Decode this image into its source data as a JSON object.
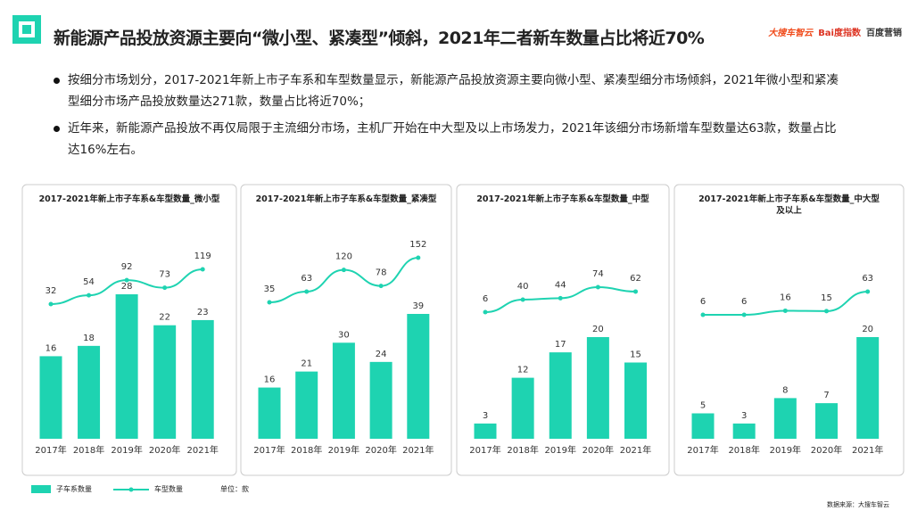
{
  "header": {
    "title": "新能源产品投放资源主要向“微小型、紧凑型”倾斜，2021年二者新车数量占比将近70%",
    "brands": [
      "大搜车智云",
      "Bai度指数",
      "百度营销"
    ]
  },
  "bullets": [
    "按细分市场划分，2017-2021年新上市子车系和车型数量显示，新能源产品投放资源主要向微小型、紧凑型细分市场倾斜，2021年微小型和紧凑型细分市场产品投放数量达271款，数量占比将近70%；",
    "近年来，新能源产品投放不再仅局限于主流细分市场，主机厂开始在中大型及以上市场发力，2021年该细分市场新增车型数量达63款，数量占比达16%左右。"
  ],
  "colors": {
    "accent": "#1ed3b1"
  },
  "chart_data": [
    {
      "type": "bar+line",
      "title": [
        "2017-2021年新上市子车系&车型数量_微小型"
      ],
      "categories": [
        "2017年",
        "2018年",
        "2019年",
        "2020年",
        "2021年"
      ],
      "series": [
        {
          "name": "子车系数量",
          "type": "bar",
          "values": [
            16,
            18,
            28,
            22,
            23
          ]
        },
        {
          "name": "车型数量",
          "type": "line",
          "values": [
            32,
            54,
            92,
            73,
            119
          ]
        }
      ]
    },
    {
      "type": "bar+line",
      "title": [
        "2017-2021年新上市子车系&车型数量_紧凑型"
      ],
      "categories": [
        "2017年",
        "2018年",
        "2019年",
        "2020年",
        "2021年"
      ],
      "series": [
        {
          "name": "子车系数量",
          "type": "bar",
          "values": [
            16,
            21,
            30,
            24,
            39
          ]
        },
        {
          "name": "车型数量",
          "type": "line",
          "values": [
            35,
            63,
            120,
            78,
            152
          ]
        }
      ]
    },
    {
      "type": "bar+line",
      "title": [
        "2017-2021年新上市子车系&车型数量_中型"
      ],
      "categories": [
        "2017年",
        "2018年",
        "2019年",
        "2020年",
        "2021年"
      ],
      "series": [
        {
          "name": "子车系数量",
          "type": "bar",
          "values": [
            3,
            12,
            17,
            20,
            15
          ]
        },
        {
          "name": "车型数量",
          "type": "line",
          "values": [
            6,
            40,
            44,
            74,
            62
          ]
        }
      ]
    },
    {
      "type": "bar+line",
      "title": [
        "2017-2021年新上市子车系&车型数量_中大型",
        "及以上"
      ],
      "categories": [
        "2017年",
        "2018年",
        "2019年",
        "2020年",
        "2021年"
      ],
      "series": [
        {
          "name": "子车系数量",
          "type": "bar",
          "values": [
            5,
            3,
            8,
            7,
            20
          ]
        },
        {
          "name": "车型数量",
          "type": "line",
          "values": [
            6,
            6,
            16,
            15,
            63
          ]
        }
      ]
    }
  ],
  "legend": {
    "bar": "子车系数量",
    "line": "车型数量",
    "unit": "单位：款"
  },
  "source": "数据来源：大搜车智云"
}
